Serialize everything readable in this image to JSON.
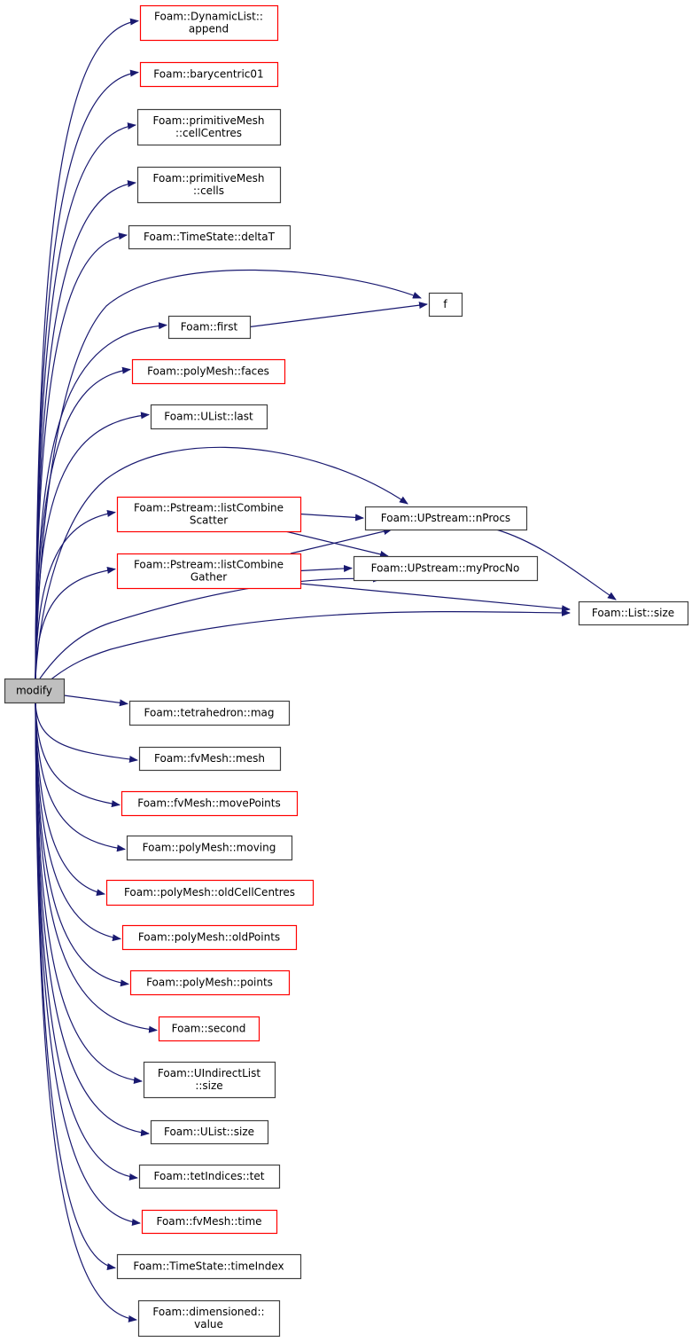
{
  "colors": {
    "edge": "#191970",
    "node_border_documented": "#000000",
    "node_border_undocumented": "#ff0000",
    "root_fill": "#bfbfbf"
  },
  "nodes": [
    {
      "id": "modify",
      "label": [
        "modify"
      ],
      "kind": "root"
    },
    {
      "id": "append",
      "label": [
        "Foam::DynamicList::",
        "append"
      ],
      "kind": "red"
    },
    {
      "id": "bary",
      "label": [
        "Foam::barycentric01"
      ],
      "kind": "red"
    },
    {
      "id": "cellCentres",
      "label": [
        "Foam::primitiveMesh",
        "::cellCentres"
      ],
      "kind": "black"
    },
    {
      "id": "cells",
      "label": [
        "Foam::primitiveMesh",
        "::cells"
      ],
      "kind": "black"
    },
    {
      "id": "deltaT",
      "label": [
        "Foam::TimeState::deltaT"
      ],
      "kind": "black"
    },
    {
      "id": "f",
      "label": [
        "f"
      ],
      "kind": "black"
    },
    {
      "id": "first",
      "label": [
        "Foam::first"
      ],
      "kind": "black"
    },
    {
      "id": "faces",
      "label": [
        "Foam::polyMesh::faces"
      ],
      "kind": "red"
    },
    {
      "id": "last",
      "label": [
        "Foam::UList::last"
      ],
      "kind": "black"
    },
    {
      "id": "scatter",
      "label": [
        "Foam::Pstream::listCombine",
        "Scatter"
      ],
      "kind": "red"
    },
    {
      "id": "nProcs",
      "label": [
        "Foam::UPstream::nProcs"
      ],
      "kind": "black"
    },
    {
      "id": "gather",
      "label": [
        "Foam::Pstream::listCombine",
        "Gather"
      ],
      "kind": "red"
    },
    {
      "id": "myProcNo",
      "label": [
        "Foam::UPstream::myProcNo"
      ],
      "kind": "black"
    },
    {
      "id": "listSize",
      "label": [
        "Foam::List::size"
      ],
      "kind": "black"
    },
    {
      "id": "mag",
      "label": [
        "Foam::tetrahedron::mag"
      ],
      "kind": "black"
    },
    {
      "id": "mesh",
      "label": [
        "Foam::fvMesh::mesh"
      ],
      "kind": "black"
    },
    {
      "id": "movePoints",
      "label": [
        "Foam::fvMesh::movePoints"
      ],
      "kind": "red"
    },
    {
      "id": "moving",
      "label": [
        "Foam::polyMesh::moving"
      ],
      "kind": "black"
    },
    {
      "id": "oldCellCentres",
      "label": [
        "Foam::polyMesh::oldCellCentres"
      ],
      "kind": "red"
    },
    {
      "id": "oldPoints",
      "label": [
        "Foam::polyMesh::oldPoints"
      ],
      "kind": "red"
    },
    {
      "id": "points",
      "label": [
        "Foam::polyMesh::points"
      ],
      "kind": "red"
    },
    {
      "id": "second",
      "label": [
        "Foam::second"
      ],
      "kind": "red"
    },
    {
      "id": "uiSize",
      "label": [
        "Foam::UIndirectList",
        "::size"
      ],
      "kind": "black"
    },
    {
      "id": "ulSize",
      "label": [
        "Foam::UList::size"
      ],
      "kind": "black"
    },
    {
      "id": "tet",
      "label": [
        "Foam::tetIndices::tet"
      ],
      "kind": "black"
    },
    {
      "id": "time",
      "label": [
        "Foam::fvMesh::time"
      ],
      "kind": "red"
    },
    {
      "id": "timeIndex",
      "label": [
        "Foam::TimeState::timeIndex"
      ],
      "kind": "black"
    },
    {
      "id": "value",
      "label": [
        "Foam::dimensioned::",
        "value"
      ],
      "kind": "black"
    }
  ],
  "edges": [
    [
      "modify",
      "append"
    ],
    [
      "modify",
      "bary"
    ],
    [
      "modify",
      "cellCentres"
    ],
    [
      "modify",
      "cells"
    ],
    [
      "modify",
      "deltaT"
    ],
    [
      "modify",
      "f"
    ],
    [
      "modify",
      "first"
    ],
    [
      "modify",
      "faces"
    ],
    [
      "modify",
      "last"
    ],
    [
      "modify",
      "nProcs"
    ],
    [
      "modify",
      "scatter"
    ],
    [
      "modify",
      "gather"
    ],
    [
      "modify",
      "myProcNo"
    ],
    [
      "modify",
      "listSize"
    ],
    [
      "modify",
      "mag"
    ],
    [
      "modify",
      "mesh"
    ],
    [
      "modify",
      "movePoints"
    ],
    [
      "modify",
      "moving"
    ],
    [
      "modify",
      "oldCellCentres"
    ],
    [
      "modify",
      "oldPoints"
    ],
    [
      "modify",
      "points"
    ],
    [
      "modify",
      "second"
    ],
    [
      "modify",
      "uiSize"
    ],
    [
      "modify",
      "ulSize"
    ],
    [
      "modify",
      "tet"
    ],
    [
      "modify",
      "time"
    ],
    [
      "modify",
      "timeIndex"
    ],
    [
      "modify",
      "value"
    ],
    [
      "first",
      "f"
    ],
    [
      "scatter",
      "nProcs"
    ],
    [
      "scatter",
      "myProcNo"
    ],
    [
      "gather",
      "nProcs"
    ],
    [
      "gather",
      "myProcNo"
    ],
    [
      "gather",
      "listSize"
    ],
    [
      "nProcs",
      "listSize"
    ]
  ]
}
